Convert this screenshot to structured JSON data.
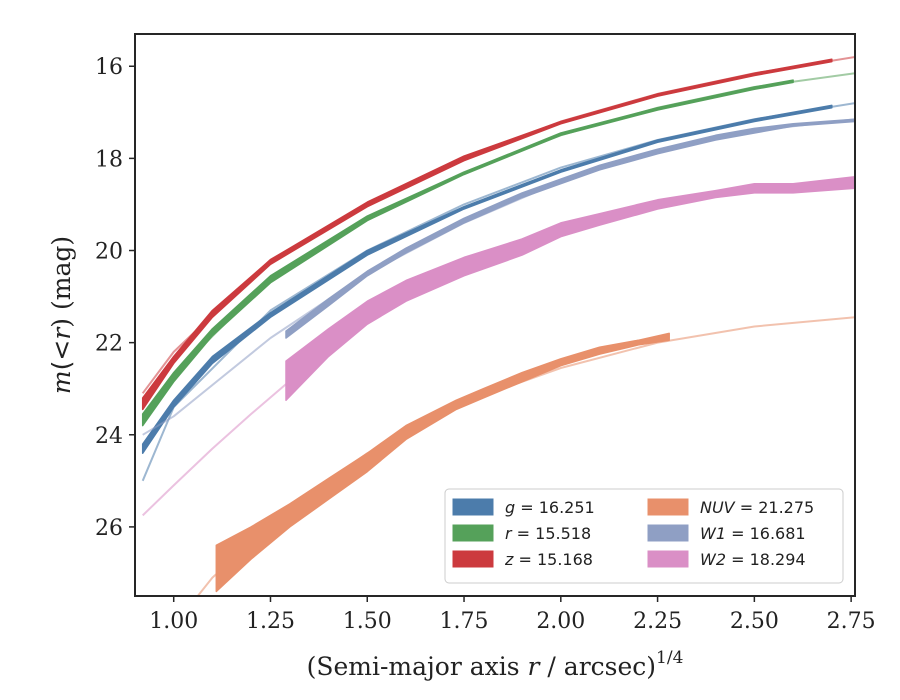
{
  "chart_data": {
    "type": "line",
    "xlabel_main": "(Semi-major axis ",
    "xlabel_var": "r",
    "xlabel_tail": " / arcsec)",
    "xlabel_sup": "1/4",
    "ylabel_m": "m",
    "ylabel_mid": "(<",
    "ylabel_r": "r",
    "ylabel_tail": ") (mag)",
    "xlim": [
      0.9,
      2.76
    ],
    "ylim": [
      27.5,
      15.3
    ],
    "y_inverted": true,
    "x_ticks": [
      1.0,
      1.25,
      1.5,
      1.75,
      2.0,
      2.25,
      2.5,
      2.75
    ],
    "x_tick_labels": [
      "1.00",
      "1.25",
      "1.50",
      "1.75",
      "2.00",
      "2.25",
      "2.50",
      "2.75"
    ],
    "y_ticks": [
      16,
      18,
      20,
      22,
      24,
      26
    ],
    "y_tick_labels": [
      "16",
      "18",
      "20",
      "22",
      "24",
      "26"
    ],
    "legend_position": "lower-right",
    "series": [
      {
        "key": "g",
        "name": "g = 16.251",
        "legend_var": "g",
        "legend_val": "= 16.251",
        "color": "#4c7cab",
        "x_model": [
          0.92,
          1.0,
          1.25,
          1.5,
          1.75,
          2.0,
          2.25,
          2.5,
          2.76
        ],
        "y_model": [
          25.0,
          23.4,
          21.3,
          20.0,
          19.0,
          18.2,
          17.6,
          17.15,
          16.8
        ],
        "x": [
          0.92,
          1.0,
          1.1,
          1.25,
          1.5,
          1.75,
          2.0,
          2.25,
          2.5,
          2.7
        ],
        "y_upper": [
          24.2,
          23.25,
          22.3,
          21.35,
          20.0,
          19.05,
          18.25,
          17.6,
          17.15,
          16.85
        ],
        "y_lower": [
          24.4,
          23.4,
          22.45,
          21.45,
          20.1,
          19.1,
          18.3,
          17.65,
          17.2,
          16.9
        ]
      },
      {
        "key": "r",
        "name": "r = 15.518",
        "legend_var": "r",
        "legend_val": "= 15.518",
        "color": "#55a15a",
        "x_model": [
          0.92,
          1.0,
          1.25,
          1.5,
          1.75,
          2.0,
          2.25,
          2.5,
          2.76
        ],
        "y_model": [
          23.7,
          22.7,
          20.6,
          19.3,
          18.3,
          17.5,
          16.9,
          16.45,
          16.15
        ],
        "x": [
          0.92,
          1.0,
          1.1,
          1.25,
          1.5,
          1.75,
          2.0,
          2.25,
          2.5,
          2.6
        ],
        "y_upper": [
          23.55,
          22.65,
          21.7,
          20.55,
          19.25,
          18.3,
          17.45,
          16.9,
          16.45,
          16.3
        ],
        "y_lower": [
          23.8,
          22.85,
          21.85,
          20.7,
          19.35,
          18.35,
          17.5,
          16.95,
          16.5,
          16.35
        ]
      },
      {
        "key": "z",
        "name": "z = 15.168",
        "legend_var": "z",
        "legend_val": "= 15.168",
        "color": "#cc3a3e",
        "x_model": [
          0.92,
          1.0,
          1.25,
          1.5,
          1.75,
          2.0,
          2.25,
          2.5,
          2.76
        ],
        "y_model": [
          23.1,
          22.2,
          20.2,
          19.0,
          18.0,
          17.2,
          16.6,
          16.15,
          15.8
        ],
        "x": [
          0.92,
          1.0,
          1.1,
          1.25,
          1.5,
          1.75,
          2.0,
          2.25,
          2.5,
          2.7
        ],
        "y_upper": [
          23.2,
          22.3,
          21.3,
          20.2,
          18.95,
          17.95,
          17.2,
          16.6,
          16.15,
          15.85
        ],
        "y_lower": [
          23.45,
          22.45,
          21.45,
          20.3,
          19.05,
          18.05,
          17.25,
          16.65,
          16.2,
          15.9
        ]
      },
      {
        "key": "NUV",
        "name": "NUV = 21.275",
        "legend_var": "NUV",
        "legend_val": "= 21.275",
        "color": "#e8906b",
        "x_model": [
          0.92,
          1.1,
          1.3,
          1.5,
          1.75,
          2.0,
          2.25,
          2.5,
          2.76
        ],
        "y_model": [
          29.0,
          27.1,
          25.6,
          24.4,
          23.3,
          22.55,
          22.0,
          21.65,
          21.45
        ],
        "x": [
          1.11,
          1.2,
          1.3,
          1.4,
          1.5,
          1.6,
          1.73,
          1.8,
          1.9,
          2.0,
          2.1,
          2.2,
          2.28
        ],
        "y_upper": [
          26.4,
          26.0,
          25.5,
          24.95,
          24.4,
          23.8,
          23.25,
          23.0,
          22.65,
          22.35,
          22.1,
          21.95,
          21.8
        ],
        "y_lower": [
          27.4,
          26.7,
          26.0,
          25.4,
          24.8,
          24.1,
          23.45,
          23.2,
          22.85,
          22.5,
          22.25,
          22.05,
          21.95
        ]
      },
      {
        "key": "W1",
        "name": "W1 = 16.681",
        "legend_var": "W1",
        "legend_val": "= 16.681",
        "color": "#8f9fc4",
        "x_model": [
          0.92,
          1.0,
          1.25,
          1.5,
          1.75,
          2.0,
          2.25,
          2.5,
          2.76
        ],
        "y_model": [
          24.0,
          23.6,
          21.9,
          20.5,
          19.4,
          18.5,
          17.85,
          17.4,
          17.15
        ],
        "x": [
          1.29,
          1.4,
          1.5,
          1.6,
          1.75,
          1.9,
          2.0,
          2.1,
          2.25,
          2.4,
          2.5,
          2.6,
          2.76
        ],
        "y_upper": [
          21.75,
          21.05,
          20.45,
          19.95,
          19.3,
          18.75,
          18.45,
          18.15,
          17.8,
          17.5,
          17.35,
          17.25,
          17.15
        ],
        "y_lower": [
          21.9,
          21.2,
          20.55,
          20.05,
          19.4,
          18.85,
          18.55,
          18.25,
          17.9,
          17.6,
          17.45,
          17.3,
          17.2
        ]
      },
      {
        "key": "W2",
        "name": "W2 = 18.294",
        "legend_var": "W2",
        "legend_val": "= 18.294",
        "color": "#da8fc6",
        "x_model": [
          0.92,
          1.0,
          1.1,
          1.2,
          1.29
        ],
        "y_model": [
          25.75,
          25.1,
          24.3,
          23.55,
          22.9
        ],
        "x": [
          1.29,
          1.4,
          1.5,
          1.6,
          1.75,
          1.9,
          2.0,
          2.1,
          2.25,
          2.4,
          2.5,
          2.6,
          2.76
        ],
        "y_upper": [
          22.4,
          21.7,
          21.1,
          20.65,
          20.15,
          19.75,
          19.4,
          19.2,
          18.9,
          18.7,
          18.55,
          18.55,
          18.4
        ],
        "y_lower": [
          23.25,
          22.3,
          21.6,
          21.1,
          20.55,
          20.1,
          19.7,
          19.45,
          19.1,
          18.85,
          18.75,
          18.75,
          18.65
        ]
      }
    ]
  }
}
